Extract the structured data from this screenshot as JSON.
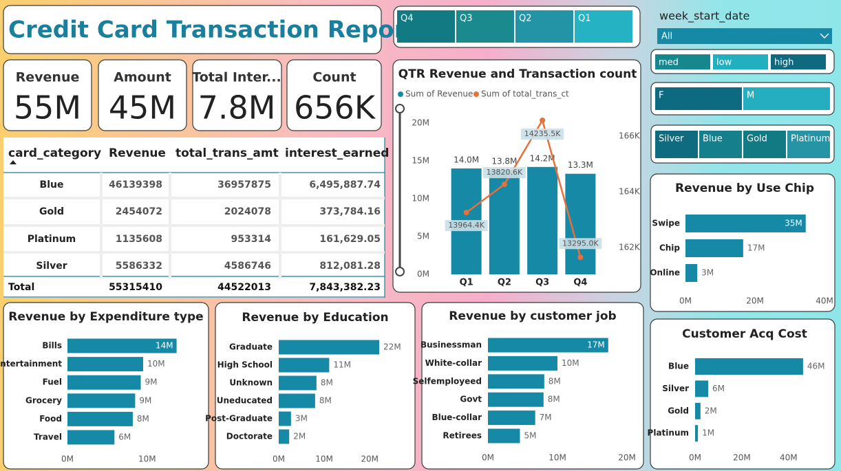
{
  "header": {
    "title": "Credit Card Transaction Report"
  },
  "kpis": [
    {
      "label": "Revenue",
      "value": "55M"
    },
    {
      "label": "Amount",
      "value": "45M"
    },
    {
      "label": "Total Inter...",
      "value": "7.8M"
    },
    {
      "label": "Count",
      "value": "656K"
    }
  ],
  "table": {
    "columns": [
      "card_category",
      "Revenue",
      "total_trans_amt",
      "interest_earned"
    ],
    "rows": [
      [
        "Blue",
        "46139398",
        "36957875",
        "6,495,887.74"
      ],
      [
        "Gold",
        "2454072",
        "2024078",
        "373,784.16"
      ],
      [
        "Platinum",
        "1135608",
        "953314",
        "161,629.05"
      ],
      [
        "Silver",
        "5586332",
        "4586746",
        "812,081.28"
      ]
    ],
    "total": [
      "Total",
      "55315410",
      "44522013",
      "7,843,382.23"
    ]
  },
  "slicers": {
    "quarter": [
      "Q4",
      "Q3",
      "Q2",
      "Q1"
    ],
    "week": {
      "label": "week_start_date",
      "value": "All"
    },
    "income": [
      "med",
      "low",
      "high"
    ],
    "gender": [
      "F",
      "M"
    ],
    "card": [
      "Silver",
      "Blue",
      "Gold",
      "Platinum"
    ]
  },
  "chart_data": [
    {
      "type": "combo",
      "title": "QTR Revenue and Transaction count",
      "categories": [
        "Q1",
        "Q2",
        "Q3",
        "Q4"
      ],
      "series": [
        {
          "name": "Sum of Revenue",
          "color": "#1589a6",
          "values": [
            14.0,
            13.8,
            14.2,
            13.3
          ],
          "value_labels": [
            "14.0M",
            "13.8M",
            "14.2M",
            "13.3M"
          ]
        },
        {
          "name": "Sum of total_trans_ct",
          "color": "#e8703a",
          "axis": "y2",
          "values": [
            163.26,
            164.27,
            166.57,
            161.65
          ]
        }
      ],
      "annotations": [
        "13964.4K",
        "13820.6K",
        "14235.5K",
        "13295.0K"
      ],
      "ylim": [
        0,
        22.5
      ],
      "yticks": [
        {
          "value": 0,
          "label": "0M"
        },
        {
          "value": 5,
          "label": "5M"
        },
        {
          "value": 10,
          "label": "10M"
        },
        {
          "value": 15,
          "label": "15M"
        },
        {
          "value": 20,
          "label": "20M"
        }
      ],
      "y2lim": [
        161.04,
        167.15
      ],
      "y2ticks": [
        {
          "value": 162,
          "label": "162K"
        },
        {
          "value": 164,
          "label": "164K"
        },
        {
          "value": 166,
          "label": "166K"
        }
      ]
    },
    {
      "type": "hbar",
      "title": "Revenue by Use Chip",
      "color": "#1589a6",
      "categories": [
        "Swipe",
        "Chip",
        "Online"
      ],
      "values": [
        34.6,
        16.6,
        3.4
      ],
      "value_labels": [
        "35M",
        "17M",
        "3M"
      ],
      "xlim": [
        0,
        40
      ],
      "xticks": [
        {
          "value": 0,
          "label": "0M"
        },
        {
          "value": 20,
          "label": "20M"
        },
        {
          "value": 40,
          "label": "40M"
        }
      ]
    },
    {
      "type": "hbar",
      "title": "Customer Acq Cost",
      "color": "#1589a6",
      "categories": [
        "Blue",
        "Silver",
        "Gold",
        "Platinum"
      ],
      "values": [
        46.2,
        5.6,
        2.3,
        1.2
      ],
      "value_labels": [
        "46M",
        "6M",
        "2M",
        "1M"
      ],
      "xlim": [
        0,
        48
      ],
      "xticks": [
        {
          "value": 0,
          "label": "0M"
        },
        {
          "value": 20,
          "label": "20M"
        },
        {
          "value": 40,
          "label": "40M"
        }
      ]
    },
    {
      "type": "hbar",
      "title": "Revenue by Expenditure type",
      "color": "#1589a6",
      "categories": [
        "Bills",
        "Entertainment",
        "Fuel",
        "Grocery",
        "Food",
        "Travel"
      ],
      "values": [
        13.7,
        9.5,
        9.2,
        8.5,
        8.2,
        5.9
      ],
      "value_labels": [
        "14M",
        "10M",
        "9M",
        "9M",
        "8M",
        "6M"
      ],
      "xlim": [
        0,
        16.5
      ],
      "xticks": [
        {
          "value": 0,
          "label": "0M"
        },
        {
          "value": 10,
          "label": "10M"
        }
      ]
    },
    {
      "type": "hbar",
      "title": "Revenue by Education",
      "color": "#1589a6",
      "categories": [
        "Graduate",
        "High School",
        "Unknown",
        "Uneducated",
        "Post-Graduate",
        "Doctorate"
      ],
      "values": [
        22.1,
        11.1,
        8.3,
        8.0,
        2.7,
        2.3
      ],
      "value_labels": [
        "22M",
        "11M",
        "8M",
        "8M",
        "3M",
        "2M"
      ],
      "xlim": [
        0,
        23
      ],
      "xticks": [
        {
          "value": 0,
          "label": "0M"
        },
        {
          "value": 10,
          "label": "10M"
        },
        {
          "value": 20,
          "label": "20M"
        }
      ]
    },
    {
      "type": "hbar",
      "title": "Revenue by customer job",
      "color": "#1589a6",
      "categories": [
        "Businessman",
        "White-collar",
        "Selfemployeed",
        "Govt",
        "Blue-collar",
        "Retirees"
      ],
      "values": [
        17.3,
        10.0,
        8.1,
        8.0,
        6.8,
        4.6
      ],
      "value_labels": [
        "17M",
        "10M",
        "8M",
        "8M",
        "7M",
        "5M"
      ],
      "xlim": [
        0,
        20
      ],
      "xticks": [
        {
          "value": 0,
          "label": "0M"
        },
        {
          "value": 10,
          "label": "10M"
        },
        {
          "value": 20,
          "label": "20M"
        }
      ]
    }
  ]
}
